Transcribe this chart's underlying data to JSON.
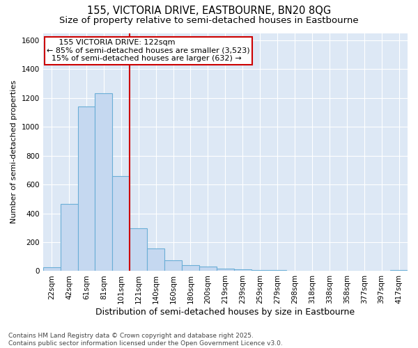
{
  "title": "155, VICTORIA DRIVE, EASTBOURNE, BN20 8QG",
  "subtitle": "Size of property relative to semi-detached houses in Eastbourne",
  "xlabel": "Distribution of semi-detached houses by size in Eastbourne",
  "ylabel": "Number of semi-detached properties",
  "categories": [
    "22sqm",
    "42sqm",
    "61sqm",
    "81sqm",
    "101sqm",
    "121sqm",
    "140sqm",
    "160sqm",
    "180sqm",
    "200sqm",
    "219sqm",
    "239sqm",
    "259sqm",
    "279sqm",
    "298sqm",
    "318sqm",
    "338sqm",
    "358sqm",
    "377sqm",
    "397sqm",
    "417sqm"
  ],
  "values": [
    25,
    465,
    1140,
    1235,
    660,
    295,
    155,
    75,
    40,
    30,
    15,
    10,
    8,
    5,
    3,
    2,
    2,
    1,
    1,
    0,
    5
  ],
  "bar_color": "#c5d8f0",
  "bar_edge_color": "#6aaed6",
  "vline_x_index": 5,
  "vline_color": "#cc0000",
  "annotation_line1": "     155 VICTORIA DRIVE: 122sqm",
  "annotation_line2": "← 85% of semi-detached houses are smaller (3,523)",
  "annotation_line3": "  15% of semi-detached houses are larger (632) →",
  "annotation_box_color": "#cc0000",
  "ylim": [
    0,
    1650
  ],
  "yticks": [
    0,
    200,
    400,
    600,
    800,
    1000,
    1200,
    1400,
    1600
  ],
  "background_color": "#ffffff",
  "plot_bg_color": "#dde8f5",
  "grid_color": "#ffffff",
  "footer_text": "Contains HM Land Registry data © Crown copyright and database right 2025.\nContains public sector information licensed under the Open Government Licence v3.0.",
  "title_fontsize": 10.5,
  "subtitle_fontsize": 9.5,
  "xlabel_fontsize": 9,
  "ylabel_fontsize": 8,
  "tick_fontsize": 7.5,
  "annotation_fontsize": 8,
  "footer_fontsize": 6.5
}
